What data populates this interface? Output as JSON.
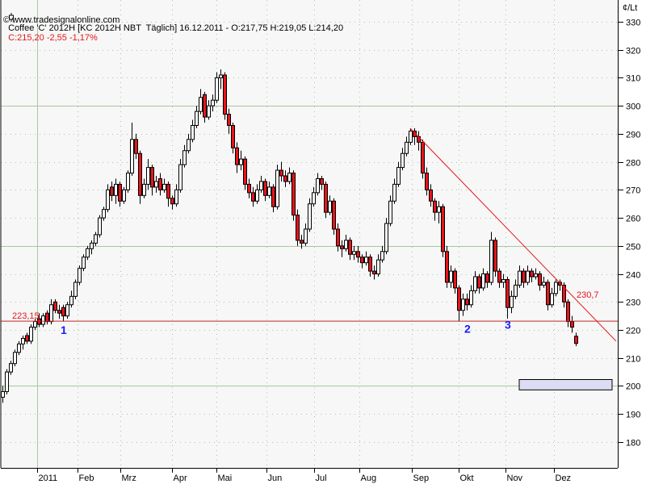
{
  "header": {
    "instrument_line": "Coffee 'C' 2012H [KC 2012H NBT  Täglich] 16.12.2011 - O:217,75 H:219,05 L:214,20",
    "close_change": "C:215,20 -2,55 -1,17%",
    "copyright": "© www.tradesignalonline.com",
    "icon": "candlestick-icon"
  },
  "colors": {
    "up_fill": "#ffffff",
    "down_fill": "#e8141c",
    "outline": "#000000",
    "annotation_red": "#e8141c",
    "label_blue": "#1a1aff",
    "grid": "#a9c7a3",
    "background": "#f6f7f6",
    "zone_fill": "#dcdcf5"
  },
  "chart_data": {
    "type": "candlestick",
    "unit_label": "¢/Lt",
    "ylim": [
      175,
      335
    ],
    "y_ticks": [
      330,
      320,
      310,
      300,
      290,
      280,
      270,
      260,
      250,
      240,
      230,
      220,
      210,
      200,
      190,
      180
    ],
    "y_major_grid": [
      300,
      250,
      200
    ],
    "x_ticks": [
      "2011",
      "Feb",
      "Mrz",
      "Apr",
      "Mai",
      "Jun",
      "Jul",
      "Aug",
      "Sep",
      "Okt",
      "Nov",
      "Dez"
    ],
    "grid": true,
    "ohlc": [
      [
        196,
        200,
        194,
        198
      ],
      [
        198,
        206,
        197,
        205
      ],
      [
        205,
        209,
        204,
        208
      ],
      [
        208,
        213,
        207,
        212
      ],
      [
        212,
        216,
        211,
        215
      ],
      [
        215,
        218,
        213,
        217
      ],
      [
        218,
        219,
        215,
        216
      ],
      [
        216,
        222,
        215,
        221
      ],
      [
        221,
        224,
        220,
        223
      ],
      [
        224,
        226,
        221,
        222
      ],
      [
        222,
        226,
        221,
        225
      ],
      [
        226,
        227,
        222,
        223
      ],
      [
        223,
        231,
        222,
        229
      ],
      [
        230,
        231,
        226,
        227
      ],
      [
        227,
        229,
        224,
        226
      ],
      [
        228,
        229,
        223,
        225
      ],
      [
        225,
        230,
        224,
        229
      ],
      [
        229,
        234,
        228,
        232
      ],
      [
        232,
        238,
        231,
        237
      ],
      [
        237,
        243,
        236,
        242
      ],
      [
        242,
        247,
        241,
        246
      ],
      [
        246,
        250,
        245,
        249
      ],
      [
        249,
        252,
        247,
        251
      ],
      [
        251,
        255,
        250,
        254
      ],
      [
        254,
        261,
        253,
        260
      ],
      [
        260,
        264,
        259,
        263
      ],
      [
        263,
        272,
        262,
        270
      ],
      [
        271,
        273,
        266,
        268
      ],
      [
        268,
        274,
        265,
        272
      ],
      [
        272,
        273,
        264,
        266
      ],
      [
        266,
        271,
        265,
        270
      ],
      [
        270,
        277,
        269,
        276
      ],
      [
        276,
        294,
        275,
        288
      ],
      [
        288,
        290,
        281,
        283
      ],
      [
        283,
        284,
        265,
        268
      ],
      [
        268,
        274,
        267,
        272
      ],
      [
        272,
        281,
        270,
        278
      ],
      [
        278,
        279,
        268,
        271
      ],
      [
        271,
        275,
        269,
        273
      ],
      [
        274,
        276,
        268,
        270
      ],
      [
        270,
        274,
        269,
        272
      ],
      [
        272,
        273,
        264,
        267
      ],
      [
        267,
        268,
        263,
        265
      ],
      [
        265,
        272,
        264,
        270
      ],
      [
        270,
        281,
        269,
        279
      ],
      [
        279,
        286,
        278,
        284
      ],
      [
        284,
        290,
        283,
        288
      ],
      [
        288,
        295,
        287,
        293
      ],
      [
        293,
        300,
        292,
        298
      ],
      [
        298,
        306,
        297,
        303
      ],
      [
        304,
        305,
        294,
        296
      ],
      [
        296,
        302,
        295,
        300
      ],
      [
        300,
        304,
        298,
        302
      ],
      [
        302,
        312,
        301,
        310
      ],
      [
        310,
        313,
        306,
        311
      ],
      [
        311,
        312,
        295,
        297
      ],
      [
        297,
        299,
        290,
        293
      ],
      [
        293,
        294,
        283,
        285
      ],
      [
        285,
        287,
        276,
        279
      ],
      [
        279,
        284,
        277,
        281
      ],
      [
        281,
        282,
        270,
        272
      ],
      [
        272,
        274,
        267,
        269
      ],
      [
        269,
        271,
        264,
        266
      ],
      [
        266,
        272,
        265,
        270
      ],
      [
        270,
        275,
        269,
        273
      ],
      [
        273,
        274,
        266,
        268
      ],
      [
        268,
        273,
        267,
        271
      ],
      [
        271,
        272,
        262,
        264
      ],
      [
        264,
        279,
        263,
        277
      ],
      [
        277,
        280,
        273,
        275
      ],
      [
        275,
        277,
        271,
        273
      ],
      [
        273,
        278,
        272,
        276
      ],
      [
        276,
        277,
        259,
        261
      ],
      [
        261,
        263,
        250,
        252
      ],
      [
        252,
        254,
        249,
        251
      ],
      [
        251,
        258,
        250,
        256
      ],
      [
        256,
        267,
        255,
        265
      ],
      [
        265,
        271,
        264,
        269
      ],
      [
        269,
        276,
        268,
        274
      ],
      [
        274,
        275,
        270,
        272
      ],
      [
        272,
        273,
        260,
        262
      ],
      [
        262,
        268,
        261,
        266
      ],
      [
        266,
        267,
        254,
        256
      ],
      [
        256,
        258,
        248,
        250
      ],
      [
        250,
        252,
        246,
        249
      ],
      [
        249,
        254,
        248,
        252
      ],
      [
        252,
        253,
        245,
        247
      ],
      [
        247,
        250,
        245,
        248
      ],
      [
        248,
        250,
        244,
        246
      ],
      [
        246,
        247,
        242,
        244
      ],
      [
        244,
        248,
        243,
        246
      ],
      [
        246,
        247,
        239,
        241
      ],
      [
        241,
        243,
        238,
        240
      ],
      [
        240,
        247,
        239,
        245
      ],
      [
        245,
        250,
        244,
        248
      ],
      [
        248,
        260,
        247,
        258
      ],
      [
        258,
        268,
        257,
        266
      ],
      [
        266,
        274,
        265,
        272
      ],
      [
        272,
        280,
        271,
        278
      ],
      [
        278,
        285,
        277,
        283
      ],
      [
        283,
        289,
        282,
        287
      ],
      [
        287,
        292,
        286,
        291
      ],
      [
        291,
        292,
        286,
        289
      ],
      [
        289,
        291,
        284,
        287
      ],
      [
        287,
        288,
        274,
        276
      ],
      [
        276,
        278,
        268,
        270
      ],
      [
        270,
        272,
        264,
        266
      ],
      [
        266,
        267,
        259,
        262
      ],
      [
        262,
        266,
        258,
        264
      ],
      [
        264,
        265,
        246,
        248
      ],
      [
        248,
        250,
        235,
        237
      ],
      [
        237,
        243,
        235,
        241
      ],
      [
        241,
        242,
        233,
        235
      ],
      [
        235,
        236,
        223,
        227
      ],
      [
        227,
        233,
        225,
        231
      ],
      [
        231,
        233,
        227,
        229
      ],
      [
        229,
        236,
        228,
        234
      ],
      [
        234,
        241,
        233,
        239
      ],
      [
        239,
        240,
        233,
        235
      ],
      [
        235,
        242,
        234,
        240
      ],
      [
        240,
        241,
        235,
        237
      ],
      [
        237,
        255,
        236,
        252
      ],
      [
        252,
        253,
        239,
        241
      ],
      [
        241,
        242,
        235,
        237
      ],
      [
        237,
        240,
        235,
        238
      ],
      [
        238,
        239,
        224,
        228
      ],
      [
        228,
        234,
        226,
        232
      ],
      [
        232,
        238,
        231,
        236
      ],
      [
        236,
        243,
        235,
        241
      ],
      [
        241,
        242,
        235,
        237
      ],
      [
        237,
        243,
        236,
        241
      ],
      [
        241,
        242,
        237,
        239
      ],
      [
        239,
        242,
        238,
        240
      ],
      [
        240,
        241,
        234,
        236
      ],
      [
        236,
        239,
        235,
        237
      ],
      [
        237,
        238,
        227,
        229
      ],
      [
        229,
        235,
        228,
        233
      ],
      [
        233,
        238,
        232,
        237
      ],
      [
        237,
        238,
        234,
        236
      ],
      [
        236,
        237,
        228,
        230
      ],
      [
        230,
        231,
        221,
        223
      ],
      [
        223,
        225,
        219,
        221
      ],
      [
        217.75,
        219.05,
        214.2,
        215.2
      ]
    ],
    "annotations": {
      "support_line": {
        "price": 223.15,
        "label": "223,15"
      },
      "trend_line": {
        "from": [
          101,
          292
        ],
        "to": [
          152,
          216
        ],
        "label": "230,7"
      },
      "wave_labels": [
        {
          "text": "1",
          "index": 14,
          "price": 218.5
        },
        {
          "text": "2",
          "index": 114,
          "price": 219
        },
        {
          "text": "3",
          "index": 124,
          "price": 220.5
        }
      ],
      "target_zone": {
        "from_index": 128,
        "to_index": 151,
        "price_low": 198.6,
        "price_high": 202.3
      }
    }
  }
}
